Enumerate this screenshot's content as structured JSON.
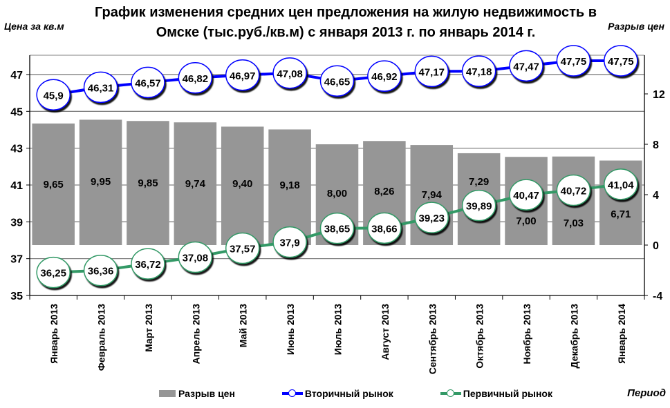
{
  "chart_title_line1": "График изменения средних цен предложения на жилую недвижимость в",
  "chart_title_line2": "Омске (тыс.руб./кв.м) с января 2013 г. по январь 2014  г.",
  "left_axis_label": "Цена за кв.м",
  "right_axis_label": "Разрыв цен",
  "x_axis_label": "Период",
  "legend": [
    {
      "label": "Разрыв цен",
      "type": "bar",
      "color": "#969696"
    },
    {
      "label": "Вторичный рынок",
      "type": "line",
      "color": "#0000ff"
    },
    {
      "label": "Первичный рынок",
      "type": "line",
      "color": "#339966"
    }
  ],
  "chart_data": {
    "type": "bar+line",
    "title": "График изменения средних цен предложения на жилую недвижимость в Омске (тыс.руб./кв.м) с января 2013 г. по январь 2014  г.",
    "xlabel": "Период",
    "ylabel": "Цена за кв.м",
    "y2label": "Разрыв цен",
    "categories": [
      "Январь 2013",
      "Февраль 2013",
      "Март 2013",
      "Апрель 2013",
      "Май 2013",
      "Июнь 2013",
      "Июль 2013",
      "Август 2013",
      "Сентябрь 2013",
      "Октябрь 2013",
      "Ноябрь 2013",
      "Декабрь 2013",
      "Январь 2014"
    ],
    "series": [
      {
        "name": "Разрыв цен",
        "type": "bar",
        "axis": "right",
        "color": "#969696",
        "values": [
          9.65,
          9.95,
          9.85,
          9.74,
          9.4,
          9.18,
          8.0,
          8.26,
          7.94,
          7.29,
          7.0,
          7.03,
          6.71
        ],
        "labels": [
          "9,65",
          "9,95",
          "9,85",
          "9,74",
          "9,40",
          "9,18",
          "8,00",
          "8,26",
          "7,94",
          "7,29",
          "7,00",
          "7,03",
          "6,71"
        ]
      },
      {
        "name": "Вторичный рынок",
        "type": "line",
        "axis": "left",
        "color": "#0000ff",
        "values": [
          45.9,
          46.31,
          46.57,
          46.82,
          46.97,
          47.08,
          46.65,
          46.92,
          47.17,
          47.18,
          47.47,
          47.75,
          47.75
        ],
        "labels": [
          "45,9",
          "46,31",
          "46,57",
          "46,82",
          "46,97",
          "47,08",
          "46,65",
          "46,92",
          "47,17",
          "47,18",
          "47,47",
          "47,75",
          "47,75"
        ]
      },
      {
        "name": "Первичный рынок",
        "type": "line",
        "axis": "left",
        "color": "#339966",
        "values": [
          36.25,
          36.36,
          36.72,
          37.08,
          37.57,
          37.9,
          38.65,
          38.66,
          39.23,
          39.89,
          40.47,
          40.72,
          41.04
        ],
        "labels": [
          "36,25",
          "36,36",
          "36,72",
          "37,08",
          "37,57",
          "37,9",
          "38,65",
          "38,66",
          "39,23",
          "39,89",
          "40,47",
          "40,72",
          "41,04"
        ]
      }
    ],
    "ylim": [
      35,
      47
    ],
    "yticks": [
      35,
      37,
      39,
      41,
      43,
      45,
      47
    ],
    "y2lim": [
      -4,
      12
    ],
    "y2ticks": [
      -4,
      0,
      4,
      8,
      12
    ],
    "grid": true,
    "legend_position": "bottom"
  }
}
